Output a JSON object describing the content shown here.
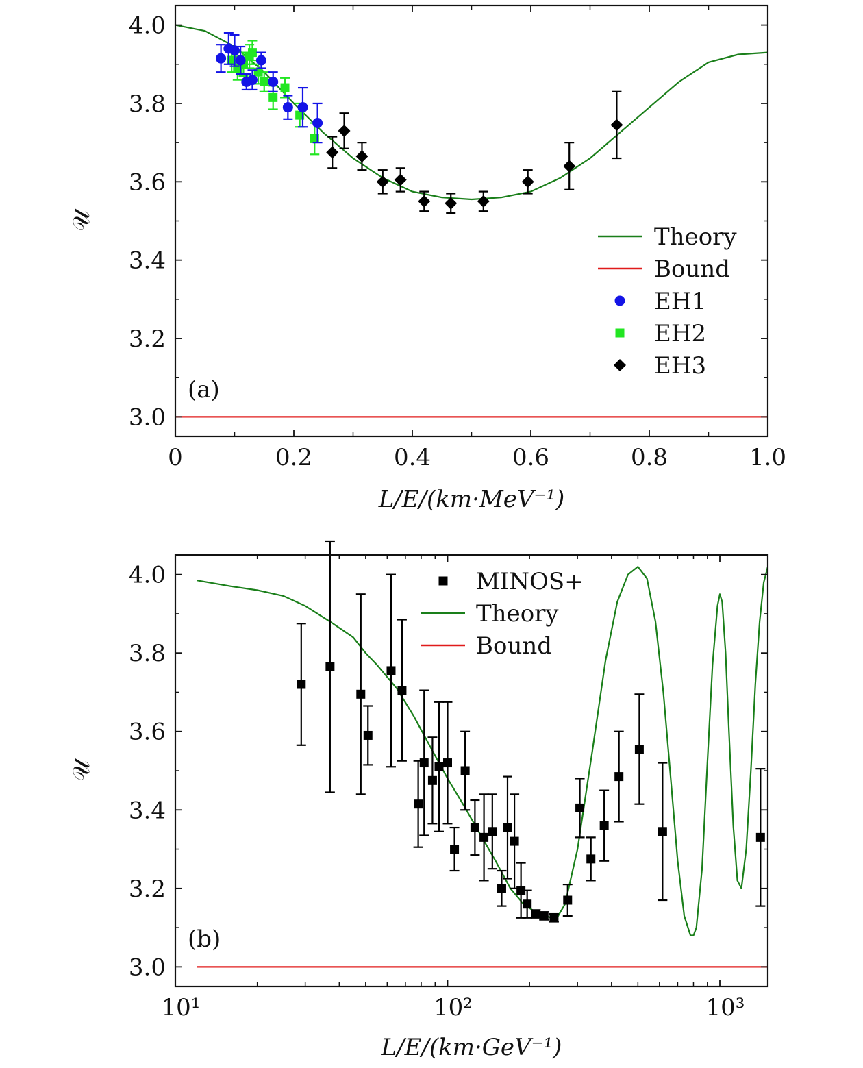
{
  "chart_data": [
    {
      "panel": "a",
      "type": "scatter",
      "tag": "(a)",
      "xlabel": "L/E/(km·MeV⁻¹)",
      "ylabel": "𝒰",
      "xscale": "linear",
      "xlim": [
        0,
        1.0
      ],
      "ylim": [
        2.95,
        4.05
      ],
      "xticks": [
        0,
        0.2,
        0.4,
        0.6,
        0.8,
        1.0
      ],
      "xtick_labels": [
        "0",
        "0.2",
        "0.4",
        "0.6",
        "0.8",
        "1.0"
      ],
      "yticks": [
        3.0,
        3.2,
        3.4,
        3.6,
        3.8,
        4.0
      ],
      "ytick_labels": [
        "3.0",
        "3.2",
        "3.4",
        "3.6",
        "3.8",
        "4.0"
      ],
      "legend_position": "right",
      "legend": [
        {
          "label": "Theory",
          "kind": "line",
          "color": "#1a7f1a"
        },
        {
          "label": "Bound",
          "kind": "line",
          "color": "#e01b1b"
        },
        {
          "label": "EH1",
          "kind": "circle",
          "color": "#1414e6"
        },
        {
          "label": "EH2",
          "kind": "square",
          "color": "#22e622"
        },
        {
          "label": "EH3",
          "kind": "diamond",
          "color": "#000000"
        }
      ],
      "series": [
        {
          "name": "Theory",
          "kind": "line",
          "color": "#1a7f1a",
          "x": [
            0,
            0.05,
            0.1,
            0.15,
            0.2,
            0.25,
            0.3,
            0.35,
            0.4,
            0.45,
            0.5,
            0.55,
            0.6,
            0.65,
            0.7,
            0.75,
            0.8,
            0.85,
            0.9,
            0.95,
            1.0
          ],
          "y": [
            4.0,
            3.985,
            3.945,
            3.88,
            3.8,
            3.725,
            3.66,
            3.61,
            3.575,
            3.56,
            3.555,
            3.56,
            3.575,
            3.61,
            3.66,
            3.725,
            3.79,
            3.855,
            3.905,
            3.925,
            3.93
          ]
        },
        {
          "name": "Bound",
          "kind": "line",
          "color": "#e01b1b",
          "x": [
            0,
            1.0
          ],
          "y": [
            3.0,
            3.0
          ]
        },
        {
          "name": "EH2",
          "kind": "square",
          "color": "#22e622",
          "x": [
            0.095,
            0.105,
            0.115,
            0.125,
            0.13,
            0.14,
            0.15,
            0.165,
            0.185,
            0.21,
            0.235
          ],
          "y": [
            3.91,
            3.89,
            3.9,
            3.92,
            3.93,
            3.88,
            3.855,
            3.815,
            3.84,
            3.77,
            3.71
          ],
          "err": [
            0.03,
            0.03,
            0.03,
            0.03,
            0.03,
            0.03,
            0.025,
            0.03,
            0.025,
            0.03,
            0.04
          ]
        },
        {
          "name": "EH1",
          "kind": "circle",
          "color": "#1414e6",
          "x": [
            0.077,
            0.09,
            0.1,
            0.11,
            0.12,
            0.13,
            0.145,
            0.165,
            0.19,
            0.215,
            0.24
          ],
          "y": [
            3.915,
            3.94,
            3.935,
            3.91,
            3.855,
            3.86,
            3.91,
            3.855,
            3.79,
            3.79,
            3.75
          ],
          "err": [
            0.035,
            0.04,
            0.04,
            0.035,
            0.02,
            0.025,
            0.02,
            0.025,
            0.03,
            0.05,
            0.05
          ]
        },
        {
          "name": "EH3",
          "kind": "diamond",
          "color": "#000000",
          "x": [
            0.265,
            0.285,
            0.315,
            0.35,
            0.38,
            0.42,
            0.465,
            0.52,
            0.595,
            0.665,
            0.745
          ],
          "y": [
            3.675,
            3.73,
            3.665,
            3.6,
            3.605,
            3.55,
            3.545,
            3.55,
            3.6,
            3.64,
            3.745
          ],
          "err": [
            0.04,
            0.045,
            0.035,
            0.03,
            0.03,
            0.025,
            0.025,
            0.025,
            0.03,
            0.06,
            0.085
          ]
        }
      ]
    },
    {
      "panel": "b",
      "type": "scatter",
      "tag": "(b)",
      "xlabel": "L/E/(km·GeV⁻¹)",
      "ylabel": "𝒰",
      "xscale": "log",
      "xlim": [
        10,
        1500
      ],
      "ylim": [
        2.95,
        4.05
      ],
      "xticks": [
        10,
        100,
        1000
      ],
      "xtick_labels": [
        "10¹",
        "10²",
        "10³"
      ],
      "yticks": [
        3.0,
        3.2,
        3.4,
        3.6,
        3.8,
        4.0
      ],
      "ytick_labels": [
        "3.0",
        "3.2",
        "3.4",
        "3.6",
        "3.8",
        "4.0"
      ],
      "legend_position": "top-center",
      "legend": [
        {
          "label": "MINOS+",
          "kind": "square",
          "color": "#000000"
        },
        {
          "label": "Theory",
          "kind": "line",
          "color": "#1a7f1a"
        },
        {
          "label": "Bound",
          "kind": "line",
          "color": "#e01b1b"
        }
      ],
      "series": [
        {
          "name": "Theory",
          "kind": "line",
          "color": "#1a7f1a",
          "x": [
            12,
            16,
            20,
            25,
            30,
            37,
            45,
            50,
            55,
            65,
            75,
            85,
            100,
            115,
            130,
            150,
            170,
            190,
            210,
            230,
            250,
            270,
            300,
            340,
            380,
            420,
            460,
            500,
            540,
            580,
            620,
            660,
            700,
            740,
            780,
            800,
            820,
            860,
            900,
            940,
            980,
            1000,
            1020,
            1050,
            1080,
            1120,
            1160,
            1200,
            1250,
            1300,
            1350,
            1400,
            1450,
            1500
          ],
          "y": [
            3.985,
            3.97,
            3.96,
            3.945,
            3.92,
            3.88,
            3.84,
            3.8,
            3.77,
            3.71,
            3.64,
            3.57,
            3.48,
            3.41,
            3.345,
            3.27,
            3.2,
            3.16,
            3.14,
            3.13,
            3.12,
            3.16,
            3.3,
            3.55,
            3.78,
            3.93,
            4.0,
            4.02,
            3.99,
            3.88,
            3.7,
            3.48,
            3.27,
            3.13,
            3.08,
            3.08,
            3.1,
            3.25,
            3.52,
            3.77,
            3.92,
            3.95,
            3.93,
            3.8,
            3.6,
            3.36,
            3.22,
            3.2,
            3.3,
            3.5,
            3.72,
            3.88,
            3.98,
            4.02
          ]
        },
        {
          "name": "Bound",
          "kind": "line",
          "color": "#e01b1b",
          "x": [
            12,
            1500
          ],
          "y": [
            3.0,
            3.0
          ]
        },
        {
          "name": "MINOS+",
          "kind": "square",
          "color": "#000000",
          "x": [
            29,
            37,
            48,
            51,
            62,
            68,
            78,
            82,
            88,
            93,
            100,
            106,
            116,
            126,
            136,
            146,
            158,
            166,
            176,
            186,
            196,
            211,
            226,
            246,
            276,
            306,
            336,
            376,
            426,
            506,
            616,
            1410
          ],
          "y": [
            3.72,
            3.765,
            3.695,
            3.59,
            3.755,
            3.705,
            3.415,
            3.52,
            3.475,
            3.51,
            3.52,
            3.3,
            3.5,
            3.355,
            3.33,
            3.345,
            3.2,
            3.355,
            3.32,
            3.195,
            3.16,
            3.135,
            3.13,
            3.125,
            3.17,
            3.405,
            3.275,
            3.36,
            3.485,
            3.555,
            3.345,
            3.33
          ],
          "err": [
            0.155,
            0.32,
            0.255,
            0.075,
            0.245,
            0.18,
            0.11,
            0.185,
            0.11,
            0.165,
            0.155,
            0.055,
            0.1,
            0.07,
            0.11,
            0.095,
            0.045,
            0.13,
            0.12,
            0.07,
            0.035,
            0.01,
            0.01,
            0.01,
            0.04,
            0.075,
            0.055,
            0.09,
            0.115,
            0.14,
            0.175,
            0.175
          ]
        }
      ]
    }
  ],
  "colors": {
    "theory": "#1a7f1a",
    "bound": "#e01b1b",
    "eh1": "#1414e6",
    "eh2": "#22e622",
    "black": "#000000"
  }
}
